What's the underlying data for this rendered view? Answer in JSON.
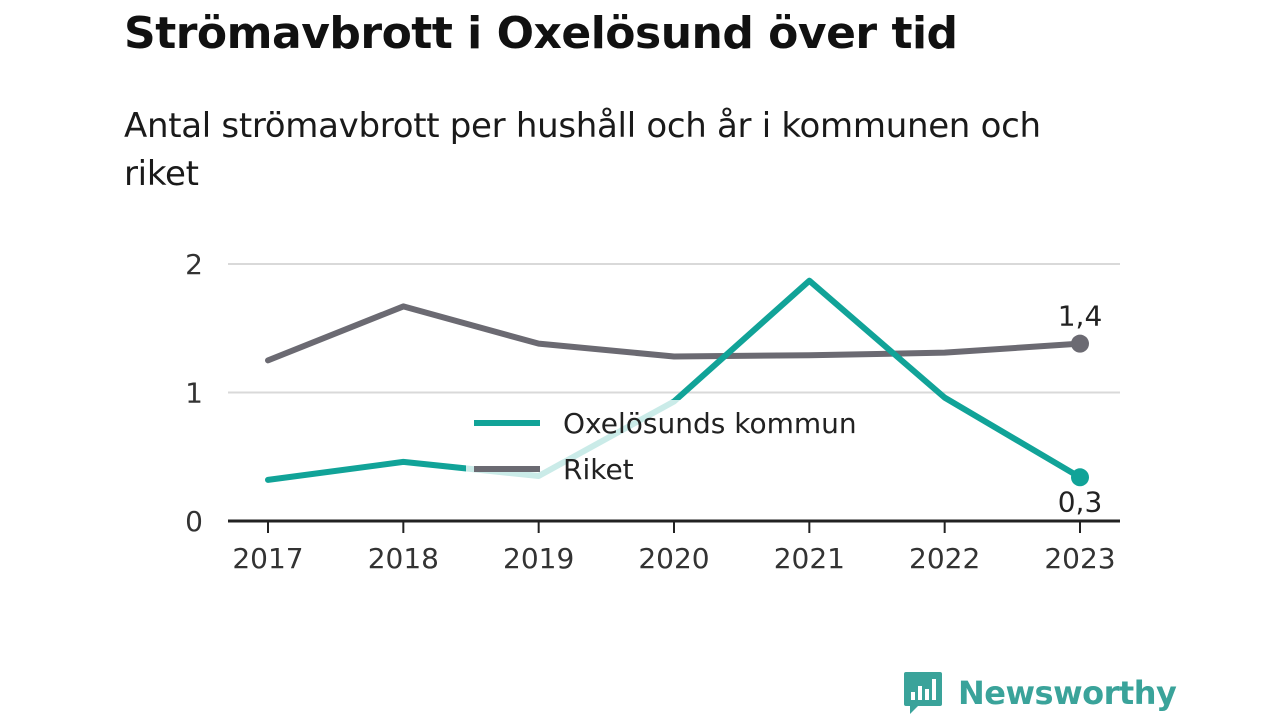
{
  "header": {
    "title": "Strömavbrott i Oxelösund över tid",
    "subtitle": "Antal strömavbrott per hushåll och år i kommunen och riket"
  },
  "brand": {
    "name": "Newsworthy",
    "icon": "newsworthy-logo-icon",
    "color": "#3aa39a"
  },
  "chart_data": {
    "type": "line",
    "title": "Strömavbrott i Oxelösund över tid",
    "subtitle": "Antal strömavbrott per hushåll och år i kommunen och riket",
    "x": [
      "2017",
      "2018",
      "2019",
      "2020",
      "2021",
      "2022",
      "2023"
    ],
    "ylim": [
      0,
      2
    ],
    "yticks": [
      "0",
      "1",
      "2"
    ],
    "grid": true,
    "legend_placement": "center",
    "series": [
      {
        "name": "Oxelösunds kommun",
        "color": "#11a398",
        "values": [
          0.32,
          0.46,
          0.35,
          0.93,
          1.87,
          0.96,
          0.34
        ],
        "end_label": "0,3"
      },
      {
        "name": "Riket",
        "color": "#6b6a72",
        "values": [
          1.25,
          1.67,
          1.38,
          1.28,
          1.29,
          1.31,
          1.38
        ],
        "end_label": "1,4"
      }
    ]
  }
}
